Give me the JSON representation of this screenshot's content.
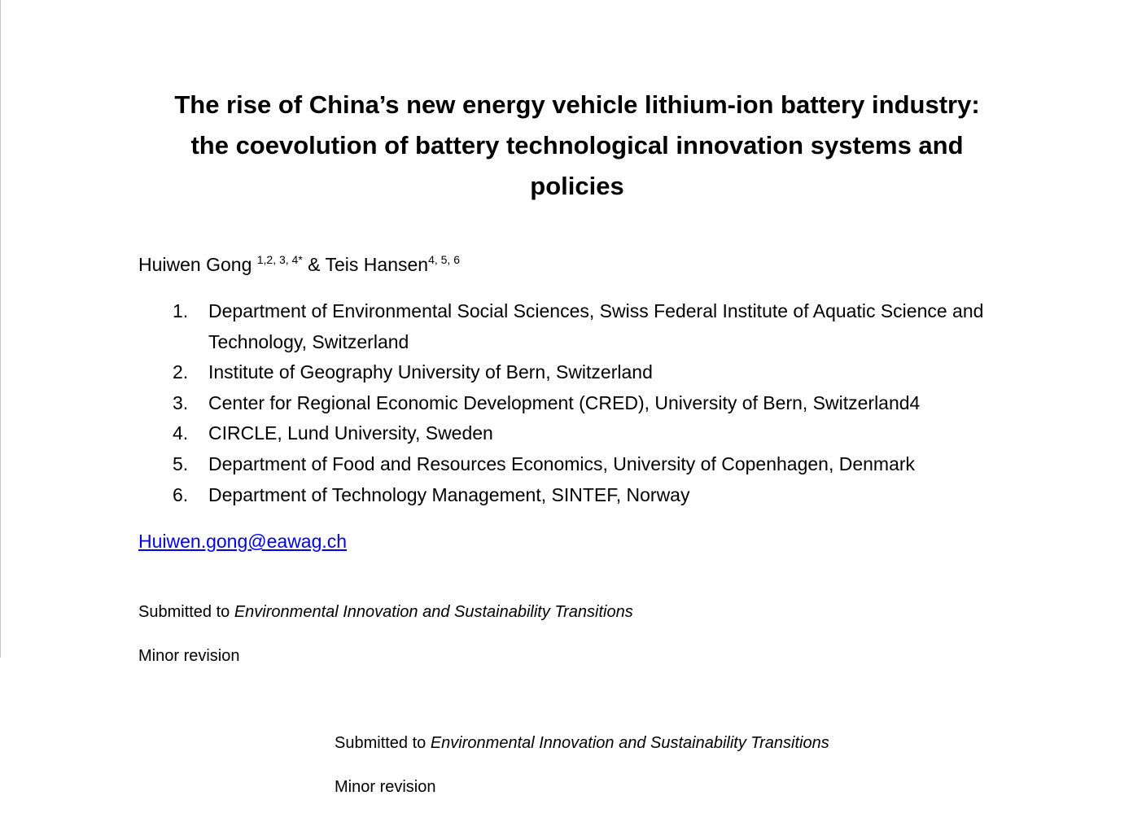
{
  "title": {
    "line1": "The rise of China’s new energy vehicle lithium-ion battery industry:",
    "line2": "the coevolution of battery technological innovation systems and",
    "line3": "policies"
  },
  "authors": {
    "author1": "Huiwen Gong ",
    "author1_affil": "1,2, 3, 4*",
    "connector": " & Teis Hansen",
    "author2_affil": "4, 5, 6"
  },
  "affiliations": [
    {
      "num": "1.",
      "text": "Department of Environmental Social Sciences, Swiss Federal Institute of Aquatic Science and Technology, Switzerland"
    },
    {
      "num": "2.",
      "text": "Institute of Geography University of Bern, Switzerland"
    },
    {
      "num": "3.",
      "text": "Center for Regional Economic Development (CRED), University of Bern, Switzerland4"
    },
    {
      "num": "4.",
      "text": "CIRCLE, Lund University, Sweden"
    },
    {
      "num": "5.",
      "text": "Department of Food and Resources Economics, University of Copenhagen, Denmark"
    },
    {
      "num": "6.",
      "text": "Department of Technology Management, SINTEF, Norway"
    }
  ],
  "email": "Huiwen.gong@eawag.ch",
  "submission": {
    "prefix": "Submitted to ",
    "journal": "Environmental Innovation and Sustainability Transitions",
    "status": "Minor revision"
  },
  "submission_repeat": {
    "prefix": "Submitted to ",
    "journal": "Environmental Innovation and Sustainability Transitions",
    "status": "Minor revision"
  }
}
